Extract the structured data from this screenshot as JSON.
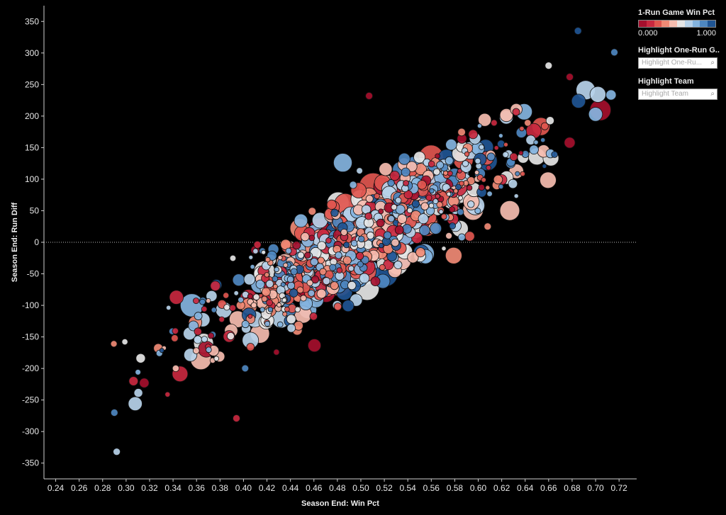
{
  "chart_data": {
    "type": "scatter",
    "xlabel": "Season End: Win Pct",
    "ylabel": "Season End: Run Diff",
    "xlim": [
      0.23,
      0.735
    ],
    "ylim": [
      -375,
      375
    ],
    "x_ticks": [
      "0.24",
      "0.26",
      "0.28",
      "0.30",
      "0.32",
      "0.34",
      "0.36",
      "0.38",
      "0.40",
      "0.42",
      "0.44",
      "0.46",
      "0.48",
      "0.50",
      "0.52",
      "0.54",
      "0.56",
      "0.58",
      "0.60",
      "0.62",
      "0.64",
      "0.66",
      "0.68",
      "0.70",
      "0.72"
    ],
    "y_ticks": [
      "350",
      "300",
      "250",
      "200",
      "150",
      "100",
      "50",
      "0",
      "-50",
      "-100",
      "-150",
      "-200",
      "-250",
      "-300",
      "-350"
    ],
    "reference_line": {
      "y": 0,
      "style": "dotted"
    },
    "color_encoding": "1-Run Game Win Pct (diverging red-gray-blue, 0.000 to 1.000)",
    "size_encoding": "varies by team-season",
    "grid": false,
    "points_sample": [
      {
        "x": 0.685,
        "y": 335,
        "c": 0.95
      },
      {
        "x": 0.716,
        "y": 301,
        "c": 0.9
      },
      {
        "x": 0.66,
        "y": 280,
        "c": 0.5
      },
      {
        "x": 0.678,
        "y": 262,
        "c": 0.05
      },
      {
        "x": 0.292,
        "y": -332,
        "c": 0.7
      },
      {
        "x": 0.29,
        "y": -270,
        "c": 0.85
      },
      {
        "x": 0.394,
        "y": -279,
        "c": 0.1
      },
      {
        "x": 0.608,
        "y": 25,
        "c": 0.3
      },
      {
        "x": 0.586,
        "y": 8,
        "c": 0.8
      },
      {
        "x": 0.507,
        "y": 232,
        "c": 0.05
      }
    ]
  },
  "legend": {
    "color_title": "1-Run Game Win Pct",
    "min_label": "0.000",
    "max_label": "1.000",
    "ramp_colors": [
      "#a50f2d",
      "#c8283f",
      "#e0564f",
      "#f08a75",
      "#f6bdb0",
      "#e6e6e6",
      "#b7d2ea",
      "#84b4df",
      "#4e87c0",
      "#1f5594"
    ]
  },
  "highlight_one_run": {
    "title": "Highlight One-Run G..",
    "placeholder": "Highlight One-Ru..."
  },
  "highlight_team": {
    "title": "Highlight Team",
    "placeholder": "Highlight Team"
  }
}
